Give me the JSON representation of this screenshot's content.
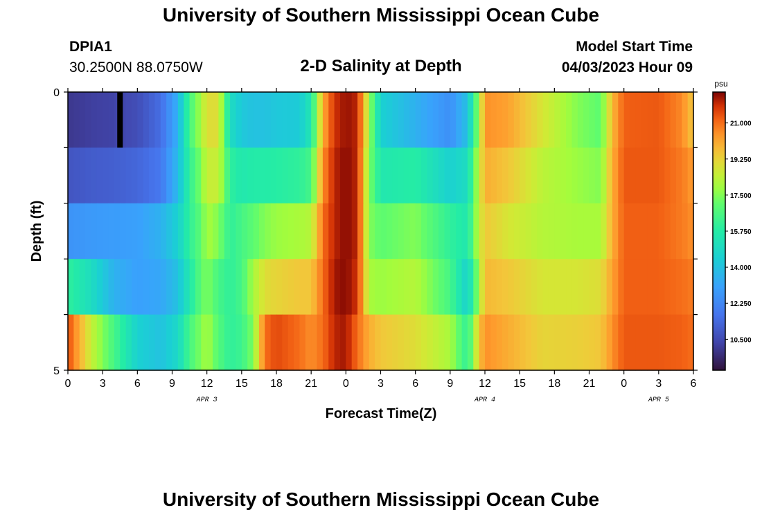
{
  "header": {
    "title": "University of Southern Mississippi Ocean Cube",
    "station_id": "DPIA1",
    "coordinates": "30.2500N  88.0750W",
    "plot_title": "2-D Salinity at Depth",
    "model_start_label": "Model Start Time",
    "model_start_value": "04/03/2023 Hour 09"
  },
  "footer": {
    "title": "University of Southern Mississippi Ocean Cube"
  },
  "chart_data": {
    "type": "heatmap",
    "title": "2-D Salinity at Depth",
    "xlabel": "Forecast Time(Z)",
    "ylabel": "Depth (ft)",
    "colorbar_label": "psu",
    "colorbar_ticks": [
      "10.500",
      "12.250",
      "14.000",
      "15.750",
      "17.500",
      "19.250",
      "21.000"
    ],
    "colorbar_tick_values": [
      10.5,
      12.25,
      14.0,
      15.75,
      17.5,
      19.25,
      21.0
    ],
    "colorbar_range": [
      9.0,
      22.5
    ],
    "x_tick_labels": [
      "0",
      "3",
      "6",
      "9",
      "12",
      "15",
      "18",
      "21",
      "0",
      "3",
      "6",
      "9",
      "12",
      "15",
      "18",
      "21",
      "0",
      "3",
      "6"
    ],
    "date_labels": [
      {
        "label": "APR 3",
        "hour": 12
      },
      {
        "label": "APR 4",
        "hour": 36
      },
      {
        "label": "APR 5",
        "hour": 51
      }
    ],
    "x_range_hours": [
      0,
      54
    ],
    "y_tick_labels": [
      "0",
      "5"
    ],
    "ylim": [
      0,
      5
    ],
    "depth_bins": 5,
    "keyframes": [
      {
        "h": 0,
        "v": [
          10.0,
          10.8,
          12.6,
          16.0,
          21.5
        ]
      },
      {
        "h": 2,
        "v": [
          10.2,
          11.0,
          12.8,
          15.0,
          18.5
        ]
      },
      {
        "h": 4,
        "v": [
          10.3,
          11.1,
          12.9,
          13.5,
          16.5
        ]
      },
      {
        "h": 6,
        "v": [
          10.6,
          11.3,
          13.0,
          13.0,
          14.5
        ]
      },
      {
        "h": 8,
        "v": [
          11.5,
          11.8,
          13.5,
          13.2,
          14.0
        ]
      },
      {
        "h": 9.5,
        "v": [
          13.5,
          13.8,
          14.5,
          14.0,
          14.8
        ]
      },
      {
        "h": 10.5,
        "v": [
          16.5,
          16.0,
          16.0,
          15.5,
          16.5
        ]
      },
      {
        "h": 11.5,
        "v": [
          18.0,
          17.5,
          17.0,
          17.0,
          17.5
        ]
      },
      {
        "h": 12,
        "v": [
          19.0,
          18.5,
          18.0,
          17.5,
          18.0
        ]
      },
      {
        "h": 13,
        "v": [
          19.0,
          18.5,
          17.5,
          16.5,
          16.8
        ]
      },
      {
        "h": 14,
        "v": [
          15.0,
          16.0,
          16.0,
          16.0,
          16.0
        ]
      },
      {
        "h": 15,
        "v": [
          14.2,
          15.5,
          16.5,
          16.5,
          16.3
        ]
      },
      {
        "h": 16,
        "v": [
          14.0,
          15.7,
          17.0,
          18.0,
          17.5
        ]
      },
      {
        "h": 17,
        "v": [
          14.0,
          15.7,
          17.5,
          19.0,
          21.0
        ]
      },
      {
        "h": 18,
        "v": [
          14.2,
          15.8,
          17.8,
          19.2,
          21.5
        ]
      },
      {
        "h": 20,
        "v": [
          14.3,
          16.0,
          18.0,
          19.5,
          21.0
        ]
      },
      {
        "h": 21,
        "v": [
          15.5,
          16.5,
          18.2,
          19.5,
          20.5
        ]
      },
      {
        "h": 22,
        "v": [
          20.0,
          20.5,
          21.0,
          21.0,
          21.0
        ]
      },
      {
        "h": 23,
        "v": [
          21.8,
          22.0,
          22.0,
          22.2,
          22.0
        ]
      },
      {
        "h": 24,
        "v": [
          22.3,
          22.4,
          22.4,
          22.4,
          22.2
        ]
      },
      {
        "h": 25,
        "v": [
          22.0,
          22.0,
          22.0,
          21.8,
          21.0
        ]
      },
      {
        "h": 26,
        "v": [
          18.0,
          17.5,
          17.5,
          18.0,
          20.0
        ]
      },
      {
        "h": 27,
        "v": [
          14.5,
          15.5,
          17.0,
          17.8,
          19.5
        ]
      },
      {
        "h": 30,
        "v": [
          13.5,
          15.8,
          17.5,
          18.2,
          19.0
        ]
      },
      {
        "h": 33,
        "v": [
          12.5,
          14.5,
          16.0,
          16.5,
          18.0
        ]
      },
      {
        "h": 34.5,
        "v": [
          14.0,
          15.0,
          15.5,
          14.5,
          16.0
        ]
      },
      {
        "h": 35.5,
        "v": [
          18.0,
          18.5,
          18.5,
          18.0,
          19.5
        ]
      },
      {
        "h": 36,
        "v": [
          20.5,
          20.0,
          19.5,
          19.8,
          20.5
        ]
      },
      {
        "h": 38,
        "v": [
          20.2,
          19.5,
          18.8,
          19.5,
          20.0
        ]
      },
      {
        "h": 41,
        "v": [
          18.8,
          18.3,
          18.2,
          18.8,
          19.2
        ]
      },
      {
        "h": 44,
        "v": [
          17.5,
          17.8,
          18.0,
          18.8,
          19.3
        ]
      },
      {
        "h": 46,
        "v": [
          17.0,
          17.5,
          18.0,
          19.0,
          19.5
        ]
      },
      {
        "h": 47,
        "v": [
          19.8,
          20.0,
          20.0,
          20.2,
          20.5
        ]
      },
      {
        "h": 48,
        "v": [
          21.2,
          21.3,
          21.2,
          21.2,
          21.3
        ]
      },
      {
        "h": 51,
        "v": [
          21.3,
          21.3,
          21.2,
          21.2,
          21.3
        ]
      },
      {
        "h": 53,
        "v": [
          20.6,
          20.8,
          20.8,
          21.0,
          21.2
        ]
      },
      {
        "h": 54,
        "v": [
          19.5,
          20.3,
          20.5,
          20.8,
          21.0
        ]
      }
    ],
    "marker_hour": 4.5
  }
}
